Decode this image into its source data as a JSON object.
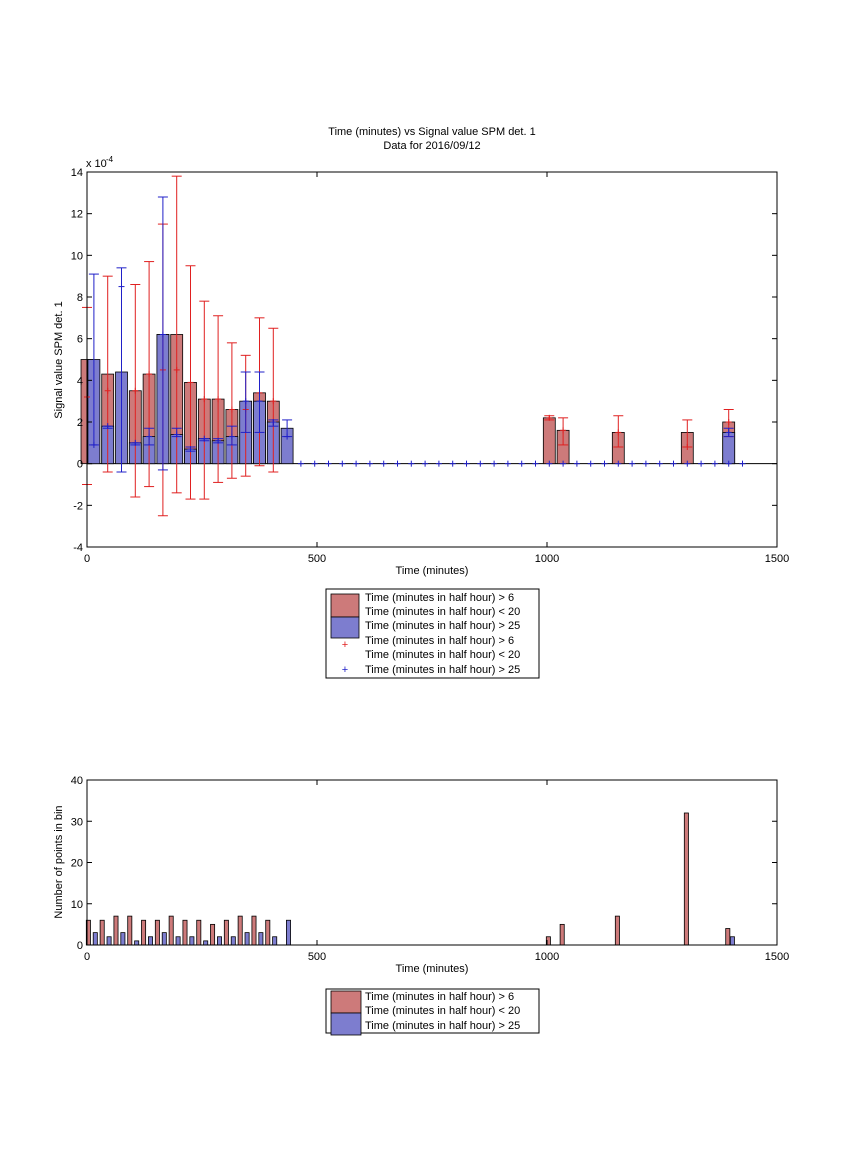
{
  "colors": {
    "red_fill": "#cd7a7a",
    "blue_fill": "#7d7dcf",
    "red_line": "#e02020",
    "blue_line": "#2020c8"
  },
  "chart_data": [
    {
      "type": "bar",
      "title": "Time (minutes) vs Signal value SPM det. 1",
      "subtitle": "Data for 2016/09/12",
      "xlabel": "Time (minutes)",
      "ylabel": "Signal value SPM det. 1",
      "exponent_label": "x 10",
      "exponent_power": "-4",
      "xlim": [
        0,
        1500
      ],
      "ylim": [
        -4,
        14
      ],
      "y_scale_factor": 0.0001,
      "xticks": [
        "0",
        "500",
        "1000",
        "1500"
      ],
      "yticks": [
        "-4",
        "-2",
        "0",
        "2",
        "4",
        "6",
        "8",
        "10",
        "12",
        "14"
      ],
      "grid": false,
      "legend_position": "below",
      "legend": [
        "Time (minutes in half hour) > 6",
        "Time (minutes in half hour) < 20",
        "Time (minutes in half hour) > 25",
        "Time (minutes in half hour) > 6",
        "Time (minutes in half hour) < 20",
        "Time (minutes in half hour) > 25"
      ],
      "series": [
        {
          "color": "red",
          "points": [
            {
              "x": 0,
              "y": 5.0,
              "lo": -1.0,
              "hi": 7.5,
              "mk": 3.2
            },
            {
              "x": 45,
              "y": 4.3,
              "lo": -0.4,
              "hi": 9.0,
              "mk": 3.5
            },
            {
              "x": 105,
              "y": 3.5,
              "lo": -1.6,
              "hi": 8.6,
              "mk": 3.5
            },
            {
              "x": 135,
              "y": 4.3,
              "lo": -1.1,
              "hi": 9.7,
              "mk": 4.3
            },
            {
              "x": 165,
              "y": 6.2,
              "lo": -2.5,
              "hi": 11.5,
              "mk": 4.5
            },
            {
              "x": 195,
              "y": 6.2,
              "lo": -1.4,
              "hi": 13.8,
              "mk": 4.5
            },
            {
              "x": 225,
              "y": 3.9,
              "lo": -1.7,
              "hi": 9.5,
              "mk": 3.9
            },
            {
              "x": 255,
              "y": 3.1,
              "lo": -1.7,
              "hi": 7.8,
              "mk": 3.1
            },
            {
              "x": 285,
              "y": 3.1,
              "lo": -0.9,
              "hi": 7.1,
              "mk": 3.1
            },
            {
              "x": 315,
              "y": 2.6,
              "lo": -0.7,
              "hi": 5.8,
              "mk": 2.6
            },
            {
              "x": 345,
              "y": 2.6,
              "lo": -0.6,
              "hi": 5.2,
              "mk": 2.6
            },
            {
              "x": 375,
              "y": 3.4,
              "lo": -0.1,
              "hi": 7.0,
              "mk": 3.4
            },
            {
              "x": 405,
              "y": 3.0,
              "lo": -0.4,
              "hi": 6.5,
              "mk": 3.0
            },
            {
              "x": 1005,
              "y": 2.2,
              "lo": 2.1,
              "hi": 2.3,
              "mk": 2.2
            },
            {
              "x": 1035,
              "y": 1.6,
              "lo": 0.9,
              "hi": 2.2,
              "mk": 1.6
            },
            {
              "x": 1155,
              "y": 1.5,
              "lo": 0.8,
              "hi": 2.3,
              "mk": 1.5
            },
            {
              "x": 1305,
              "y": 1.5,
              "lo": 0.8,
              "hi": 2.1,
              "mk": 0.8
            },
            {
              "x": 1395,
              "y": 2.0,
              "lo": 1.3,
              "hi": 2.6,
              "mk": 2.0
            }
          ]
        },
        {
          "color": "blue",
          "points": [
            {
              "x": 15,
              "y": 5.0,
              "lo": 0.9,
              "hi": 9.1,
              "mk": 0.9
            },
            {
              "x": 45,
              "y": 1.8,
              "lo": 1.7,
              "hi": 1.8,
              "mk": 1.8
            },
            {
              "x": 75,
              "y": 4.4,
              "lo": -0.4,
              "hi": 9.4,
              "mk": 8.5
            },
            {
              "x": 105,
              "y": 1.0,
              "lo": 0.9,
              "hi": 1.0,
              "mk": 1.0
            },
            {
              "x": 135,
              "y": 1.3,
              "lo": 0.9,
              "hi": 1.7,
              "mk": 1.3
            },
            {
              "x": 165,
              "y": 6.2,
              "lo": -0.3,
              "hi": 12.8,
              "mk": 6.2
            },
            {
              "x": 195,
              "y": 1.4,
              "lo": 1.3,
              "hi": 1.7,
              "mk": 1.4
            },
            {
              "x": 225,
              "y": 0.7,
              "lo": 0.6,
              "hi": 0.8,
              "mk": 0.7
            },
            {
              "x": 255,
              "y": 1.2,
              "lo": 1.1,
              "hi": 1.2,
              "mk": 1.2
            },
            {
              "x": 285,
              "y": 1.1,
              "lo": 1.0,
              "hi": 1.2,
              "mk": 1.1
            },
            {
              "x": 315,
              "y": 1.3,
              "lo": 0.9,
              "hi": 1.8,
              "mk": 1.3
            },
            {
              "x": 345,
              "y": 3.0,
              "lo": 1.5,
              "hi": 4.4,
              "mk": 3.0
            },
            {
              "x": 375,
              "y": 3.0,
              "lo": 1.5,
              "hi": 4.4,
              "mk": 3.0
            },
            {
              "x": 405,
              "y": 2.0,
              "lo": 1.8,
              "hi": 2.1,
              "mk": 2.0
            },
            {
              "x": 435,
              "y": 1.7,
              "lo": 1.3,
              "hi": 2.1,
              "mk": 1.3
            },
            {
              "x": 1395,
              "y": 1.5,
              "lo": 1.3,
              "hi": 1.7,
              "mk": 1.5
            }
          ],
          "zero_markers": [
            465,
            495,
            525,
            555,
            585,
            615,
            645,
            675,
            705,
            735,
            765,
            795,
            825,
            855,
            885,
            915,
            945,
            975,
            1005,
            1035,
            1065,
            1095,
            1125,
            1155,
            1185,
            1215,
            1245,
            1275,
            1305,
            1335,
            1365,
            1395,
            1425
          ]
        }
      ]
    },
    {
      "type": "bar",
      "xlabel": "Time (minutes)",
      "ylabel": "Number of points in bin",
      "xlim": [
        0,
        1500
      ],
      "ylim": [
        0,
        40
      ],
      "xticks": [
        "0",
        "500",
        "1000",
        "1500"
      ],
      "yticks": [
        "0",
        "10",
        "20",
        "30",
        "40"
      ],
      "grid": false,
      "legend_position": "below",
      "legend": [
        "Time (minutes in half hour) > 6",
        "Time (minutes in half hour) < 20",
        "Time (minutes in half hour) > 25"
      ],
      "series": [
        {
          "color": "red",
          "x": [
            3,
            33,
            63,
            93,
            123,
            153,
            183,
            213,
            243,
            273,
            303,
            333,
            363,
            393,
            1003,
            1033,
            1153,
            1303,
            1393
          ],
          "values": [
            6,
            6,
            7,
            7,
            6,
            6,
            7,
            6,
            6,
            5,
            6,
            7,
            7,
            6,
            2,
            5,
            7,
            32,
            4
          ]
        },
        {
          "color": "blue",
          "x": [
            18,
            48,
            78,
            108,
            138,
            168,
            198,
            228,
            258,
            288,
            318,
            348,
            378,
            408,
            438,
            1403
          ],
          "values": [
            3,
            2,
            3,
            1,
            2,
            3,
            2,
            2,
            1,
            2,
            2,
            3,
            3,
            2,
            6,
            2
          ]
        }
      ]
    }
  ]
}
